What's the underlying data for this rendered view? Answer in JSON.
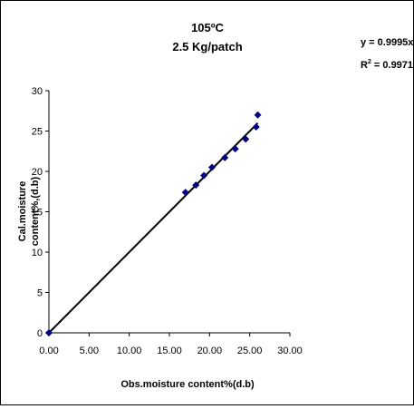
{
  "chart_data": {
    "type": "scatter",
    "title_line1": "105ºC",
    "title_line2": "2.5 Kg/patch",
    "equation": "y = 0.9995x",
    "r2_prefix": "R",
    "r2_sup": "2",
    "r2_value": " = 0.9971",
    "xlabel": "Obs.moisture content%(d.b)",
    "ylabel_line1": "Cal.moisture",
    "ylabel_line2": "content%,(d.b)",
    "xlim": [
      0,
      30
    ],
    "ylim": [
      0,
      30
    ],
    "x_ticks": [
      {
        "v": 0,
        "label": "0.00"
      },
      {
        "v": 5,
        "label": "5.00"
      },
      {
        "v": 10,
        "label": "10.00"
      },
      {
        "v": 15,
        "label": "15.00"
      },
      {
        "v": 20,
        "label": "20.00"
      },
      {
        "v": 25,
        "label": "25.00"
      },
      {
        "v": 30,
        "label": "30.00"
      }
    ],
    "y_ticks": [
      {
        "v": 0,
        "label": "0"
      },
      {
        "v": 5,
        "label": "5"
      },
      {
        "v": 10,
        "label": "10"
      },
      {
        "v": 15,
        "label": "15"
      },
      {
        "v": 20,
        "label": "20"
      },
      {
        "v": 25,
        "label": "25"
      },
      {
        "v": 30,
        "label": "30"
      }
    ],
    "grid": false,
    "marker_color": "#000080",
    "line_color": "#000000",
    "points": [
      {
        "x": 0.0,
        "y": 0.0
      },
      {
        "x": 17.0,
        "y": 17.4
      },
      {
        "x": 18.3,
        "y": 18.3
      },
      {
        "x": 19.3,
        "y": 19.5
      },
      {
        "x": 20.3,
        "y": 20.5
      },
      {
        "x": 21.9,
        "y": 21.7
      },
      {
        "x": 23.2,
        "y": 22.8
      },
      {
        "x": 24.5,
        "y": 24.0
      },
      {
        "x": 25.8,
        "y": 25.5
      },
      {
        "x": 26.0,
        "y": 27.0
      }
    ],
    "trendline": {
      "slope": 0.9995,
      "x_start": 0,
      "x_end": 26
    }
  }
}
